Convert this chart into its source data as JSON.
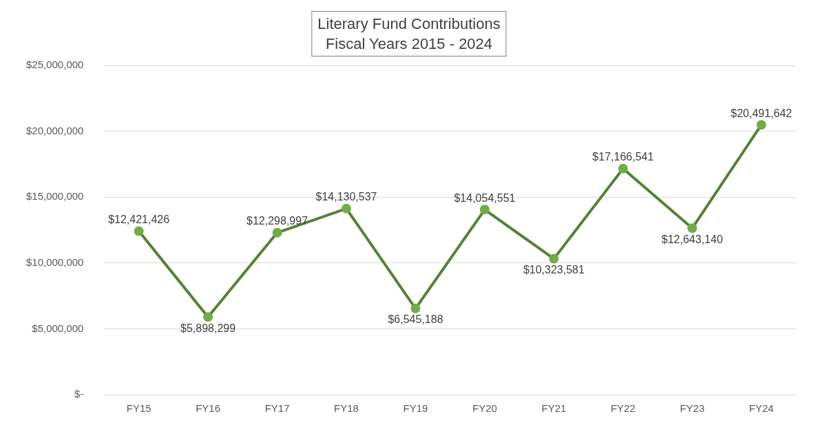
{
  "chart_data": {
    "type": "line",
    "title": "Literary Fund Contributions",
    "subtitle": "Fiscal Years 2015 - 2024",
    "categories": [
      "FY15",
      "FY16",
      "FY17",
      "FY18",
      "FY19",
      "FY20",
      "FY21",
      "FY22",
      "FY23",
      "FY24"
    ],
    "series": [
      {
        "color": "#548235",
        "values": [
          12421426,
          5898299,
          12298997,
          14130537,
          6545188,
          14054551,
          10323581,
          17166541,
          12643140,
          20491642
        ],
        "value_labels": [
          "$12,421,426",
          "$5,898,299",
          "$12,298,997",
          "$14,130,537",
          "$6,545,188",
          "$14,054,551",
          "$10,323,581",
          "$17,166,541",
          "$12,643,140",
          "$20,491,642"
        ]
      }
    ],
    "ylim": [
      0,
      25000000
    ],
    "yticks": [
      {
        "value": 0,
        "label": "$-"
      },
      {
        "value": 5000000,
        "label": "$5,000,000"
      },
      {
        "value": 10000000,
        "label": "$10,000,000"
      },
      {
        "value": 15000000,
        "label": "$15,000,000"
      },
      {
        "value": 20000000,
        "label": "$20,000,000"
      },
      {
        "value": 25000000,
        "label": "$25,000,000"
      }
    ],
    "grid": "y",
    "legend": false,
    "marker": "circle",
    "line_style": "solid"
  }
}
